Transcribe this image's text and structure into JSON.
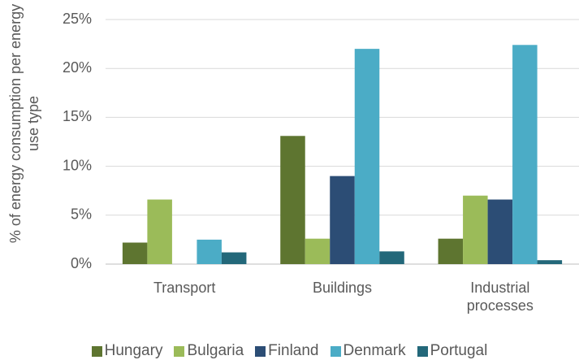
{
  "chart_data": {
    "type": "bar",
    "y_label": "% of energy consumption per energy use type",
    "categories": [
      "Transport",
      "Buildings",
      "Industrial processes"
    ],
    "series": [
      {
        "name": "Hungary",
        "color": "#5e7530",
        "values": [
          2.2,
          13.1,
          2.6
        ]
      },
      {
        "name": "Bulgaria",
        "color": "#9bbb59",
        "values": [
          6.6,
          2.6,
          7.0
        ]
      },
      {
        "name": "Finland",
        "color": "#2c4d75",
        "values": [
          null,
          9.0,
          6.6
        ]
      },
      {
        "name": "Denmark",
        "color": "#4bacc6",
        "values": [
          2.5,
          22.0,
          22.4
        ]
      },
      {
        "name": "Portugal",
        "color": "#23687a",
        "values": [
          1.2,
          1.3,
          0.4
        ]
      }
    ],
    "ylim": [
      0,
      25
    ],
    "yticks": [
      {
        "value": 0,
        "label": "0%"
      },
      {
        "value": 5,
        "label": "5%"
      },
      {
        "value": 10,
        "label": "10%"
      },
      {
        "value": 15,
        "label": "15%"
      },
      {
        "value": 20,
        "label": "20%"
      },
      {
        "value": 25,
        "label": "25%"
      }
    ],
    "grid": true,
    "legend": "bottom"
  }
}
